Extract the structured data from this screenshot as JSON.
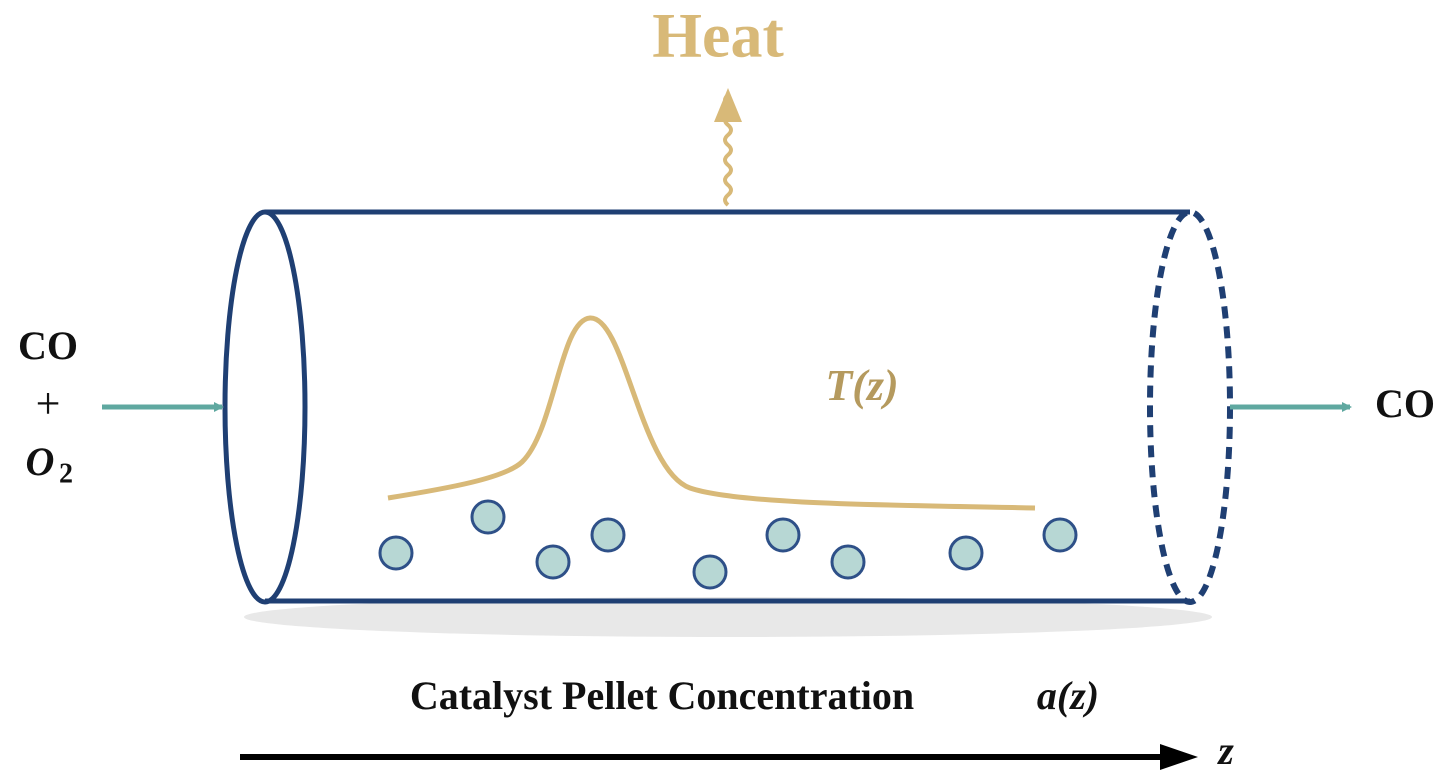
{
  "heat_label": "Heat",
  "inlet": {
    "species1": "CO",
    "plus": "+",
    "species2": "O",
    "species2_subscript": "2"
  },
  "outlet": {
    "species": "CO"
  },
  "temperature_label": "T(z)",
  "axis": {
    "label": "Catalyst Pellet Concentration",
    "function": "a(z)",
    "variable": "z"
  }
}
